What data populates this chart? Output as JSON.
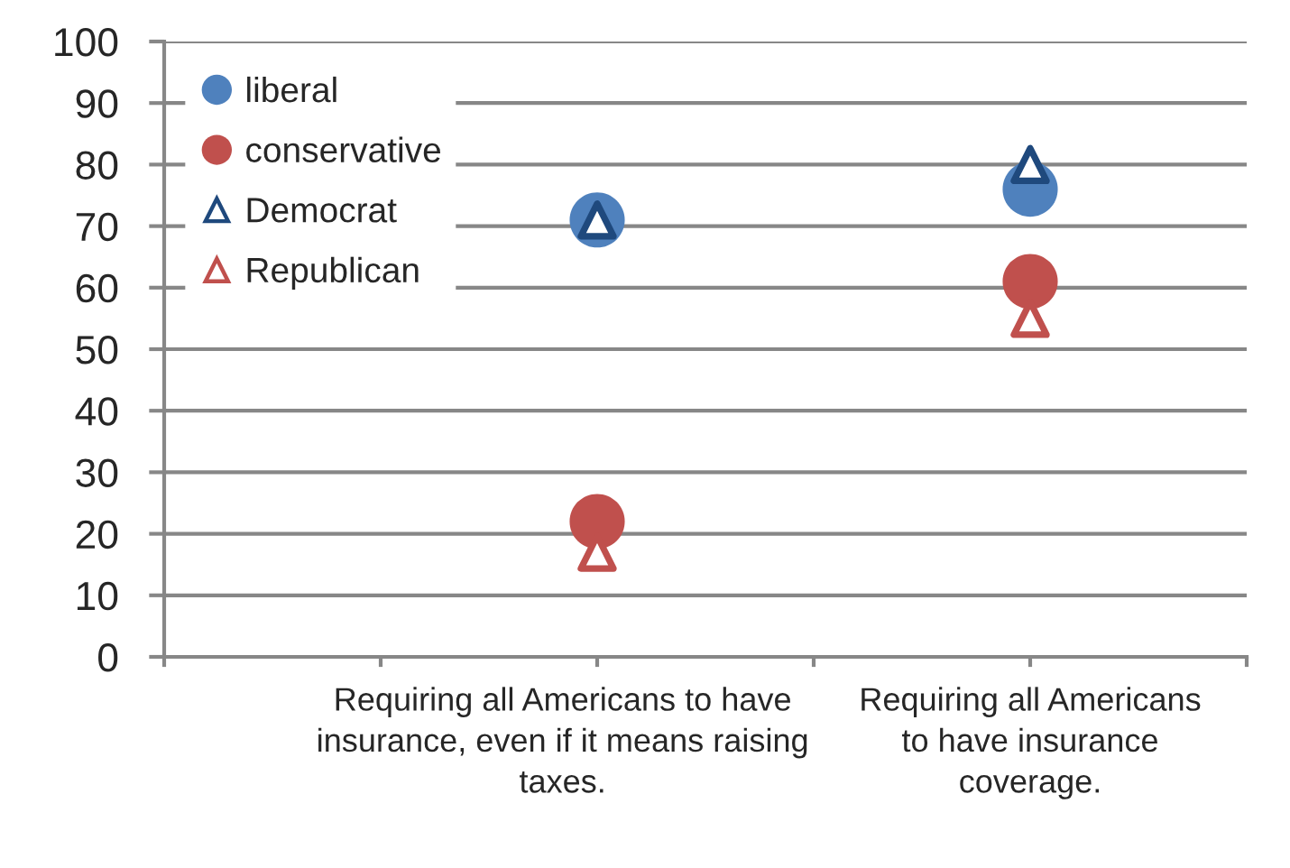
{
  "chart_data": {
    "type": "scatter",
    "categories": [
      null,
      null,
      "Requiring all Americans to have\ninsurance, even if it means raising\ntaxes.",
      null,
      "Requiring all Americans\nto have insurance\ncoverage.",
      null
    ],
    "series": [
      {
        "name": "liberal",
        "color": "#4f81bd",
        "marker": "circle",
        "values": [
          null,
          null,
          71,
          null,
          76,
          null
        ]
      },
      {
        "name": "conservative",
        "color": "#c0504d",
        "marker": "circle",
        "values": [
          null,
          null,
          22,
          null,
          61,
          null
        ]
      },
      {
        "name": "Democrat",
        "color": "#1f497d",
        "marker": "triangle",
        "values": [
          null,
          null,
          71,
          null,
          80,
          null
        ]
      },
      {
        "name": "Republican",
        "color": "#c0504d",
        "marker": "triangle",
        "values": [
          null,
          null,
          17,
          null,
          55,
          null
        ]
      }
    ],
    "ylim": [
      0,
      100
    ],
    "yticks": [
      0,
      10,
      20,
      30,
      40,
      50,
      60,
      70,
      80,
      90,
      100
    ],
    "grid": "y",
    "legend": "top left"
  }
}
